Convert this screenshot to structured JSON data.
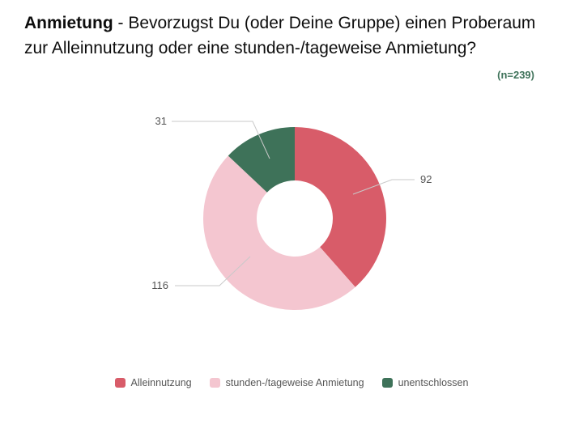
{
  "header": {
    "title_bold": "Anmietung",
    "title_rest": " - Bevorzugst Du (oder Deine Gruppe) einen Proberaum zur Alleinnutzung oder eine stunden-/tageweise Anmietung?",
    "sample_size": "(n=239)",
    "sample_size_color": "#3e7259"
  },
  "chart_data": {
    "type": "pie",
    "subtype": "donut",
    "title": "",
    "categories": [
      "Alleinnutzung",
      "stunden-/tageweise Anmietung",
      "unentschlossen"
    ],
    "values": [
      92,
      116,
      31
    ],
    "colors": [
      "#d85c69",
      "#f4c6d0",
      "#3e7259"
    ],
    "total": 239,
    "start_angle_deg": 0,
    "direction": "clockwise",
    "legend_position": "bottom",
    "data_labels": [
      "92",
      "116",
      "31"
    ],
    "leader_line_color": "#c9c9c9",
    "label_text_color": "#555555"
  }
}
